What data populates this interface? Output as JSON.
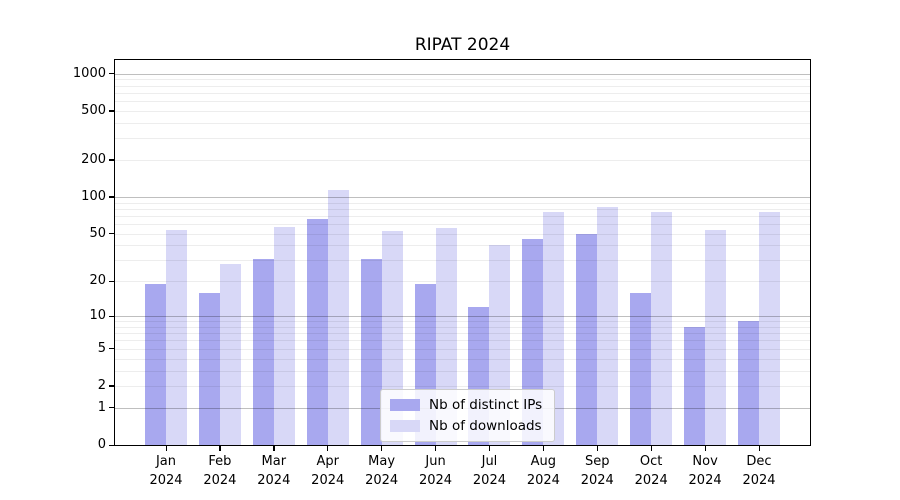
{
  "title": "RIPAT 2024",
  "chart_data": {
    "type": "bar",
    "title": "RIPAT 2024",
    "yscale": "log1p",
    "ylim": [
      0,
      1290
    ],
    "grid": true,
    "categories": [
      "Jan",
      "Feb",
      "Mar",
      "Apr",
      "May",
      "Jun",
      "Jul",
      "Aug",
      "Sep",
      "Oct",
      "Nov",
      "Dec"
    ],
    "year_label": "2024",
    "series": [
      {
        "name": "Nb of distinct IPs",
        "color": "#a8a8ef",
        "values": [
          19,
          16,
          31,
          66,
          31,
          19,
          12,
          45,
          50,
          16,
          8,
          9
        ]
      },
      {
        "name": "Nb of downloads",
        "color": "#d8d8f7",
        "values": [
          54,
          28,
          57,
          115,
          53,
          56,
          40,
          75,
          83,
          75,
          54,
          75
        ]
      }
    ],
    "yticks": [
      0,
      1,
      2,
      5,
      10,
      20,
      50,
      100,
      200,
      500,
      1000
    ],
    "major_gridlines": [
      1,
      10,
      100,
      1000
    ],
    "minor_gridlines": [
      2,
      3,
      4,
      5,
      6,
      7,
      8,
      9,
      20,
      30,
      40,
      50,
      60,
      70,
      80,
      90,
      200,
      300,
      400,
      500,
      600,
      700,
      800,
      900
    ],
    "legend_position": "lower center"
  },
  "colors": {
    "background": "#ffffff",
    "axis": "#000000",
    "grid_major": "rgba(0,0,0,0.25)",
    "grid_minor": "rgba(0,0,0,0.07)",
    "ips_bar": "#a8a8ef",
    "downloads_bar": "#d8d8f7"
  }
}
